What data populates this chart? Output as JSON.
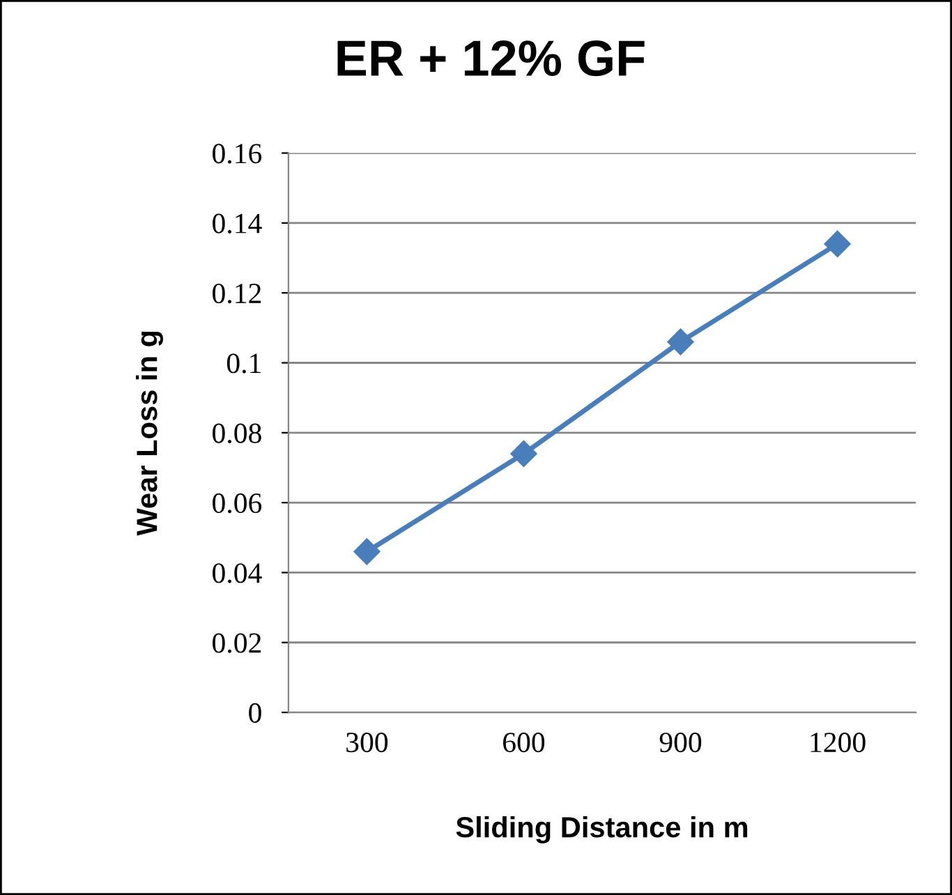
{
  "chart_data": {
    "type": "line",
    "title": "ER + 12% GF",
    "xlabel": "Sliding Distance in m",
    "ylabel": "Wear Loss in g",
    "categories": [
      "300",
      "600",
      "900",
      "1200"
    ],
    "series": [
      {
        "color": "#4a7ebb",
        "values": [
          0.046,
          0.074,
          0.106,
          0.134
        ]
      }
    ],
    "ylim": [
      0,
      0.16
    ],
    "yticks": [
      0,
      0.02,
      0.04,
      0.06,
      0.08,
      0.1,
      0.12,
      0.14,
      0.16
    ],
    "grid": "y",
    "legend": false,
    "marker": "diamond",
    "line_style": "solid"
  }
}
